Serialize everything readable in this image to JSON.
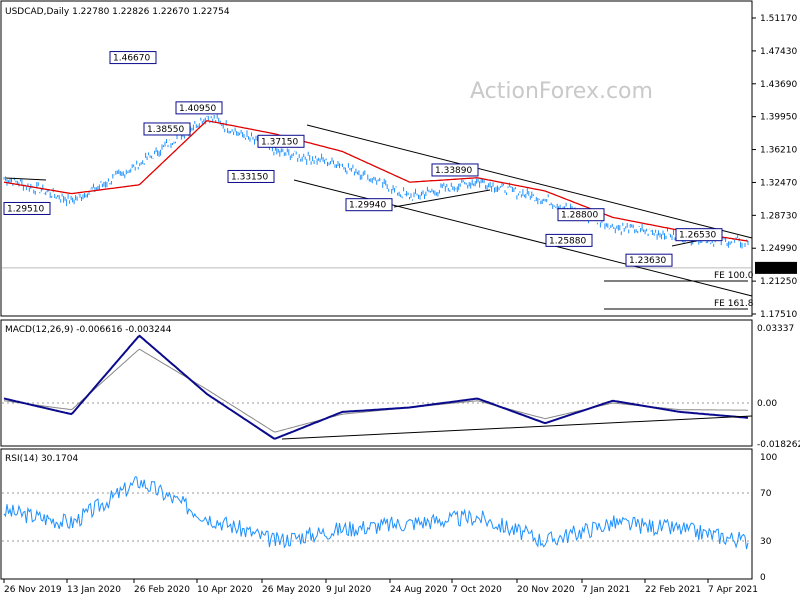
{
  "window": {
    "symbol_header": "USDCAD,Daily  1.22780 1.22826 1.22670 1.22754",
    "watermark": "ActionForex.com"
  },
  "colors": {
    "price": "#1e90ff",
    "ma": "#e00000",
    "macd": "#0a0a8c",
    "signal": "#888888",
    "rsi": "#1e90ff",
    "trend": "#000000",
    "label_border": "#0a0a8c",
    "current_price_bg": "#000000"
  },
  "chart_data": [
    {
      "type": "line",
      "panel": "price",
      "title": "USDCAD,Daily  1.22780 1.22826 1.22670 1.22754",
      "x_tick_labels": [
        "26 Nov 2019",
        "13 Jan 2020",
        "26 Feb 2020",
        "10 Apr 2020",
        "26 May 2020",
        "9 Jul 2020",
        "24 Aug 2020",
        "7 Oct 2020",
        "20 Nov 2020",
        "7 Jan 2021",
        "22 Feb 2021",
        "7 Apr 2021"
      ],
      "y_tick_labels": [
        "1.51170",
        "1.47430",
        "1.43690",
        "1.39950",
        "1.36210",
        "1.32470",
        "1.28730",
        "1.24990",
        "1.21250",
        "1.17510"
      ],
      "ylim": [
        1.1751,
        1.5117
      ],
      "current_price": "1.22754",
      "x": [
        "26 Nov 2019",
        "13 Jan 2020",
        "26 Feb 2020",
        "10 Apr 2020",
        "26 May 2020",
        "9 Jul 2020",
        "24 Aug 2020",
        "7 Oct 2020",
        "20 Nov 2020",
        "7 Jan 2021",
        "22 Feb 2021",
        "7 Apr 2021"
      ],
      "series": [
        {
          "values": [
            1.33,
            1.304,
            1.345,
            1.4,
            1.36,
            1.345,
            1.308,
            1.326,
            1.305,
            1.275,
            1.263,
            1.256
          ]
        },
        {
          "values": [
            1.325,
            1.312,
            1.322,
            1.395,
            1.38,
            1.36,
            1.325,
            1.33,
            1.315,
            1.285,
            1.27,
            1.258
          ]
        }
      ],
      "annotations": {
        "levels": [
          {
            "label": "1.46670",
            "value": 1.4667
          },
          {
            "label": "1.38550",
            "value": 1.3855
          },
          {
            "label": "1.40950",
            "value": 1.4095
          },
          {
            "label": "1.37150",
            "value": 1.3715
          },
          {
            "label": "1.33150",
            "value": 1.3315
          },
          {
            "label": "1.29510",
            "value": 1.2951
          },
          {
            "label": "1.29940",
            "value": 1.2994
          },
          {
            "label": "1.33890",
            "value": 1.3389
          },
          {
            "label": "1.28800",
            "value": 1.288
          },
          {
            "label": "1.25880",
            "value": 1.2588
          },
          {
            "label": "1.26530",
            "value": 1.2653
          },
          {
            "label": "1.23630",
            "value": 1.2363
          }
        ],
        "fe_labels": [
          "FE 100.0",
          "FE 161.8"
        ]
      }
    },
    {
      "type": "line",
      "panel": "macd",
      "title": "MACD(12,26,9) -0.006616 -0.003244",
      "y_tick_labels": [
        "0.03337",
        "0.00",
        "-0.018262"
      ],
      "ylim": [
        -0.018262,
        0.03337
      ],
      "x": [
        "26 Nov 2019",
        "13 Jan 2020",
        "26 Feb 2020",
        "10 Apr 2020",
        "26 May 2020",
        "9 Jul 2020",
        "24 Aug 2020",
        "7 Oct 2020",
        "20 Nov 2020",
        "7 Jan 2021",
        "22 Feb 2021",
        "7 Apr 2021"
      ],
      "series": [
        {
          "values": [
            0.002,
            -0.005,
            0.03,
            0.004,
            -0.016,
            -0.004,
            -0.002,
            0.002,
            -0.009,
            0.001,
            -0.004,
            -0.0066
          ]
        },
        {
          "values": [
            0.001,
            -0.003,
            0.024,
            0.006,
            -0.013,
            -0.005,
            -0.002,
            0.001,
            -0.007,
            0.0,
            -0.003,
            -0.0032
          ]
        }
      ]
    },
    {
      "type": "line",
      "panel": "rsi",
      "title": "RSI(14) 30.1704",
      "y_tick_labels": [
        "100",
        "70",
        "30",
        "0"
      ],
      "ylim": [
        0,
        100
      ],
      "x": [
        "26 Nov 2019",
        "13 Jan 2020",
        "26 Feb 2020",
        "10 Apr 2020",
        "26 May 2020",
        "9 Jul 2020",
        "24 Aug 2020",
        "7 Oct 2020",
        "20 Nov 2020",
        "7 Jan 2021",
        "22 Feb 2021",
        "7 Apr 2021"
      ],
      "series": [
        {
          "values": [
            55,
            45,
            80,
            50,
            30,
            40,
            45,
            50,
            30,
            45,
            40,
            30
          ]
        }
      ]
    }
  ]
}
